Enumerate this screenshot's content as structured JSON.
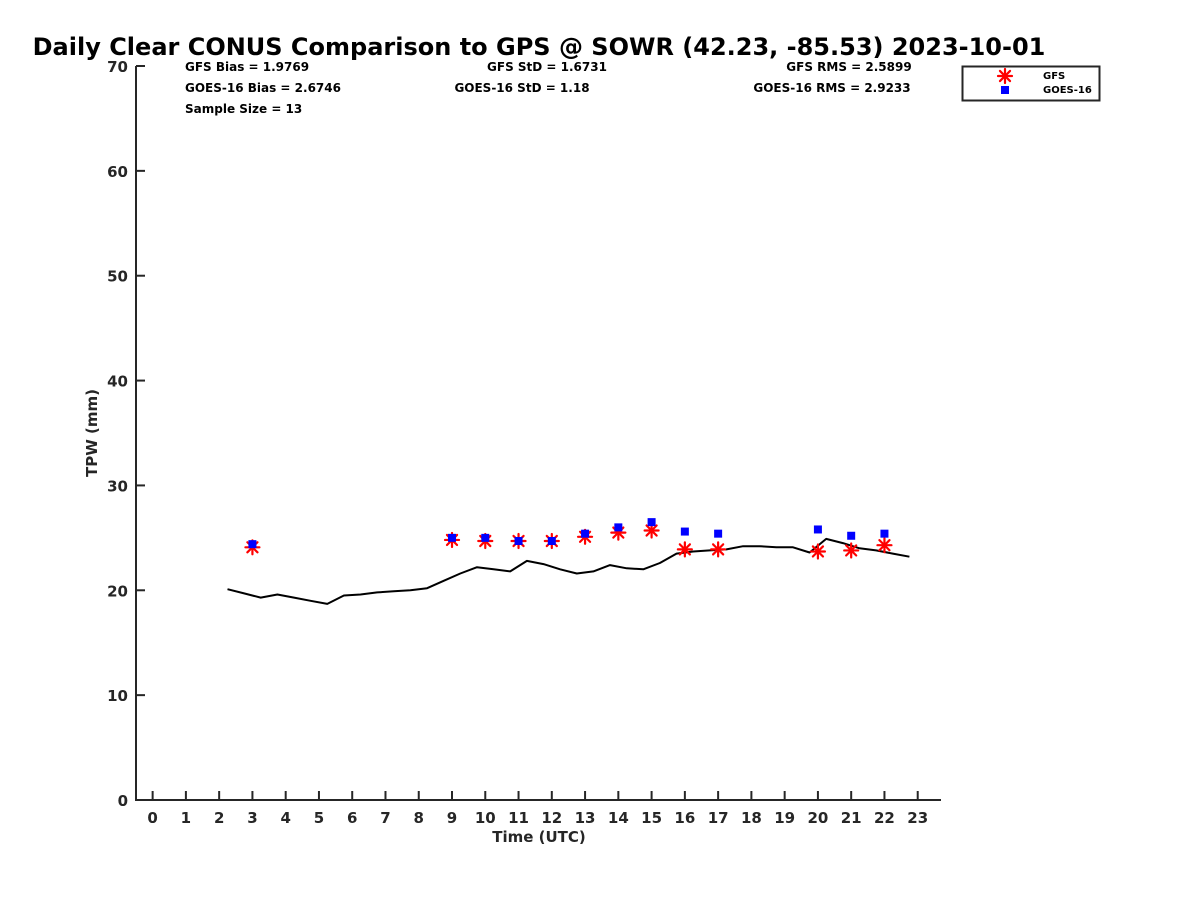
{
  "chart_data": {
    "type": "line",
    "title": "Daily Clear CONUS Comparison to GPS @ SOWR (42.23, -85.53) 2023-10-01",
    "xlabel": "Time (UTC)",
    "ylabel": "TPW (mm)",
    "xlim": [
      -0.5,
      23.7
    ],
    "ylim": [
      0,
      70
    ],
    "xticks": [
      "0",
      "1",
      "2",
      "3",
      "4",
      "5",
      "6",
      "7",
      "8",
      "9",
      "10",
      "11",
      "12",
      "13",
      "14",
      "15",
      "16",
      "17",
      "18",
      "19",
      "20",
      "21",
      "22",
      "23"
    ],
    "yticks": [
      "0",
      "10",
      "20",
      "30",
      "40",
      "50",
      "60",
      "70"
    ],
    "stats": {
      "gfs_bias": "GFS Bias = 1.9769",
      "gfs_std": "GFS StD = 1.6731",
      "gfs_rms": "GFS RMS = 2.5899",
      "goes_bias": "GOES-16 Bias = 2.6746",
      "goes_std": "GOES-16 StD = 1.18",
      "goes_rms": "GOES-16 RMS = 2.9233",
      "sample_size": "Sample Size = 13"
    },
    "legend": {
      "position": "top-right",
      "entries": [
        "GFS",
        "GOES-16"
      ]
    },
    "series": [
      {
        "name": "GPS",
        "style": "line",
        "color": "#000000",
        "x": [
          2.25,
          2.75,
          3.25,
          3.75,
          4.25,
          4.75,
          5.25,
          5.75,
          6.25,
          6.75,
          7.25,
          7.75,
          8.25,
          8.75,
          9.25,
          9.75,
          10.25,
          10.75,
          11.25,
          11.75,
          12.25,
          12.75,
          13.25,
          13.75,
          14.25,
          14.75,
          15.25,
          15.75,
          16.25,
          16.75,
          17.25,
          17.75,
          18.25,
          18.75,
          19.25,
          19.75,
          20.25,
          20.75,
          21.25,
          21.75,
          22.25,
          22.75
        ],
        "y": [
          20.1,
          19.7,
          19.3,
          19.6,
          19.3,
          19.0,
          18.7,
          19.5,
          19.6,
          19.8,
          19.9,
          20.0,
          20.2,
          20.9,
          21.6,
          22.2,
          22.0,
          21.8,
          22.8,
          22.5,
          22.0,
          21.6,
          21.8,
          22.4,
          22.1,
          22.0,
          22.6,
          23.5,
          23.7,
          23.8,
          23.9,
          24.2,
          24.2,
          24.1,
          24.1,
          23.6,
          24.9,
          24.5,
          24.0,
          23.8,
          23.5,
          23.2
        ]
      },
      {
        "name": "GFS",
        "style": "asterisk",
        "color": "#ff0000",
        "x": [
          3,
          9,
          10,
          11,
          12,
          13,
          14,
          15,
          16,
          17,
          20,
          21,
          22
        ],
        "y": [
          24.1,
          24.8,
          24.7,
          24.7,
          24.7,
          25.1,
          25.5,
          25.7,
          23.9,
          23.9,
          23.7,
          23.8,
          24.3
        ]
      },
      {
        "name": "GOES-16",
        "style": "square",
        "color": "#0000ff",
        "x": [
          3,
          9,
          10,
          11,
          12,
          13,
          14,
          15,
          16,
          17,
          20,
          21,
          22
        ],
        "y": [
          24.4,
          25.0,
          25.0,
          24.7,
          24.7,
          25.4,
          26.0,
          26.5,
          25.6,
          25.4,
          25.8,
          25.2,
          25.4
        ]
      }
    ]
  }
}
